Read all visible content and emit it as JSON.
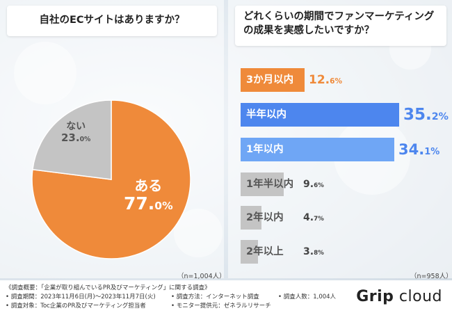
{
  "colors": {
    "orange": "#ef8a3a",
    "blue_dark": "#4d86ee",
    "blue_light": "#6fa6f5",
    "gray": "#c4c4c4",
    "gray_text": "#555555"
  },
  "chart_data": [
    {
      "type": "pie",
      "title": "自社のECサイトはありますか？",
      "slices": [
        {
          "label": "ある",
          "value": 77.0,
          "pct_main": "77.",
          "pct_dec": "0%"
        },
        {
          "label": "ない",
          "value": 23.0,
          "pct_main": "23.",
          "pct_dec": "0%"
        }
      ],
      "sample_note": "（n=1,004人）"
    },
    {
      "type": "bar",
      "orientation": "horizontal",
      "title": "どれくらいの期間でファンマーケティングの成果を実感したいですか？",
      "title_line1": "どれくらいの期間でファンマーケティング",
      "title_line2": "の成果を実感したいですか？",
      "xlim": [
        0,
        40
      ],
      "categories": [
        "3か月以内",
        "半年以内",
        "1年以内",
        "1年半以内",
        "2年以内",
        "2年以上"
      ],
      "values": [
        12.6,
        35.2,
        34.1,
        9.6,
        4.7,
        3.8
      ],
      "value_main": [
        "12.",
        "35.",
        "34.",
        "9.",
        "4.",
        "3."
      ],
      "value_dec": [
        "6%",
        "2%",
        "1%",
        "6%",
        "7%",
        "8%"
      ],
      "sample_note": "（n=958人）"
    }
  ],
  "footer": {
    "title": "《調査概要：「企業が取り組んでいるPR及びマーケティング」に関する調査》",
    "period": "• 調査期間：2023年11月6日(月)～2023年11月7日(火)",
    "method": "• 調査方法：インターネット調査",
    "count": "• 調査人数：1,004人",
    "target": "• 調査対象：Toc企業のPR及びマーケティング担当者",
    "monitor": "• モニター提供元：ゼネラルリサーチ"
  },
  "logo": {
    "brand": "Grip",
    "product": "cloud"
  }
}
